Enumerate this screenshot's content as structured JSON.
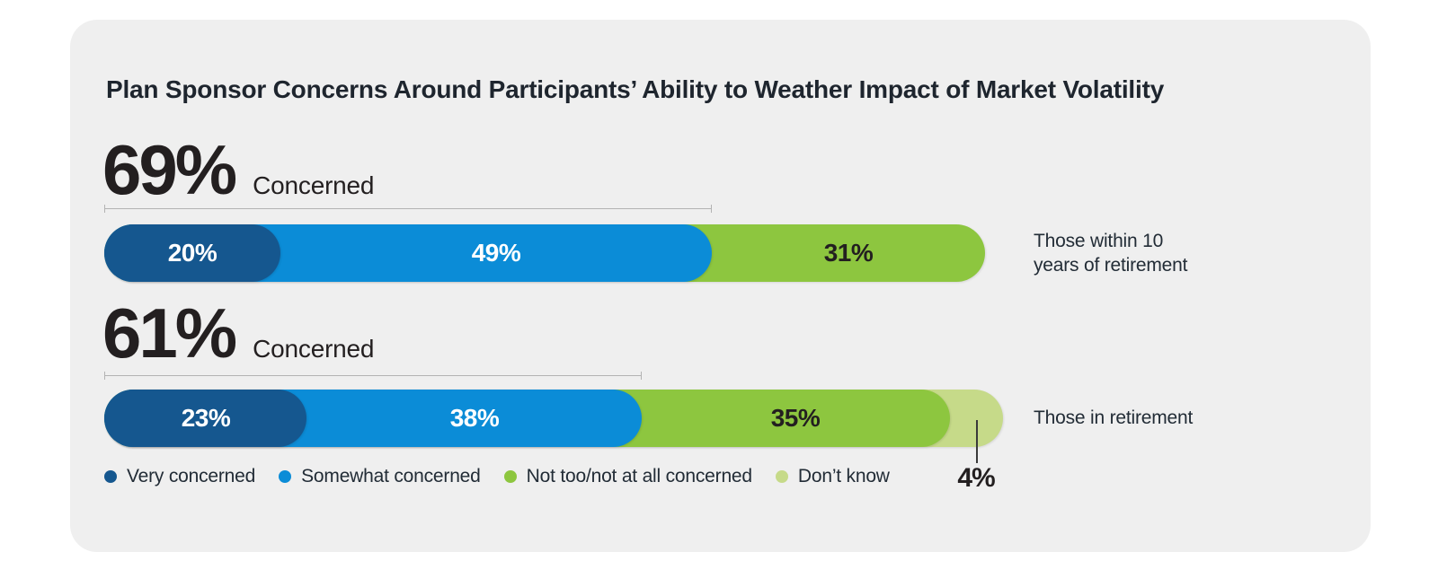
{
  "page": {
    "background": "#ffffff",
    "card_background": "#efefef"
  },
  "title": "Plan Sponsor Concerns Around Participants’ Ability to Weather Impact of Market Volatility",
  "text_colors": {
    "dark": "#231f20",
    "light": "#ffffff",
    "label": "#222c36"
  },
  "chart_data": {
    "type": "bar",
    "variant": "horizontal-stacked-pill",
    "title": "Plan Sponsor Concerns Around Participants’ Ability to Weather Impact of Market Volatility",
    "unit": "%",
    "xlim": [
      0,
      100
    ],
    "grid": false,
    "legend_position": "bottom",
    "legend": [
      {
        "label": "Very concerned",
        "color": "#15578f"
      },
      {
        "label": "Somewhat concerned",
        "color": "#0b8cd7"
      },
      {
        "label": "Not too/not at all concerned",
        "color": "#8dc63f"
      },
      {
        "label": "Don’t know",
        "color": "#c6da89"
      }
    ],
    "rows": [
      {
        "headline_value": "69%",
        "headline_suffix": "Concerned",
        "concerned_pct": 69,
        "category": "Those within 10 years of retirement",
        "category_lines": [
          "Those within 10",
          "years of retirement"
        ],
        "segments": [
          {
            "series": "Very concerned",
            "label": "20%",
            "value": 20
          },
          {
            "series": "Somewhat concerned",
            "label": "49%",
            "value": 49
          },
          {
            "series": "Not too/not at all concerned",
            "label": "31%",
            "value": 31
          }
        ]
      },
      {
        "headline_value": "61%",
        "headline_suffix": "Concerned",
        "concerned_pct": 61,
        "category": "Those in retirement",
        "category_lines": [
          "Those in retirement"
        ],
        "segments": [
          {
            "series": "Very concerned",
            "label": "23%",
            "value": 23
          },
          {
            "series": "Somewhat concerned",
            "label": "38%",
            "value": 38
          },
          {
            "series": "Not too/not at all concerned",
            "label": "35%",
            "value": 35
          },
          {
            "series": "Don’t know",
            "label": "",
            "value": 4,
            "callout_label": "4%"
          }
        ]
      }
    ]
  }
}
